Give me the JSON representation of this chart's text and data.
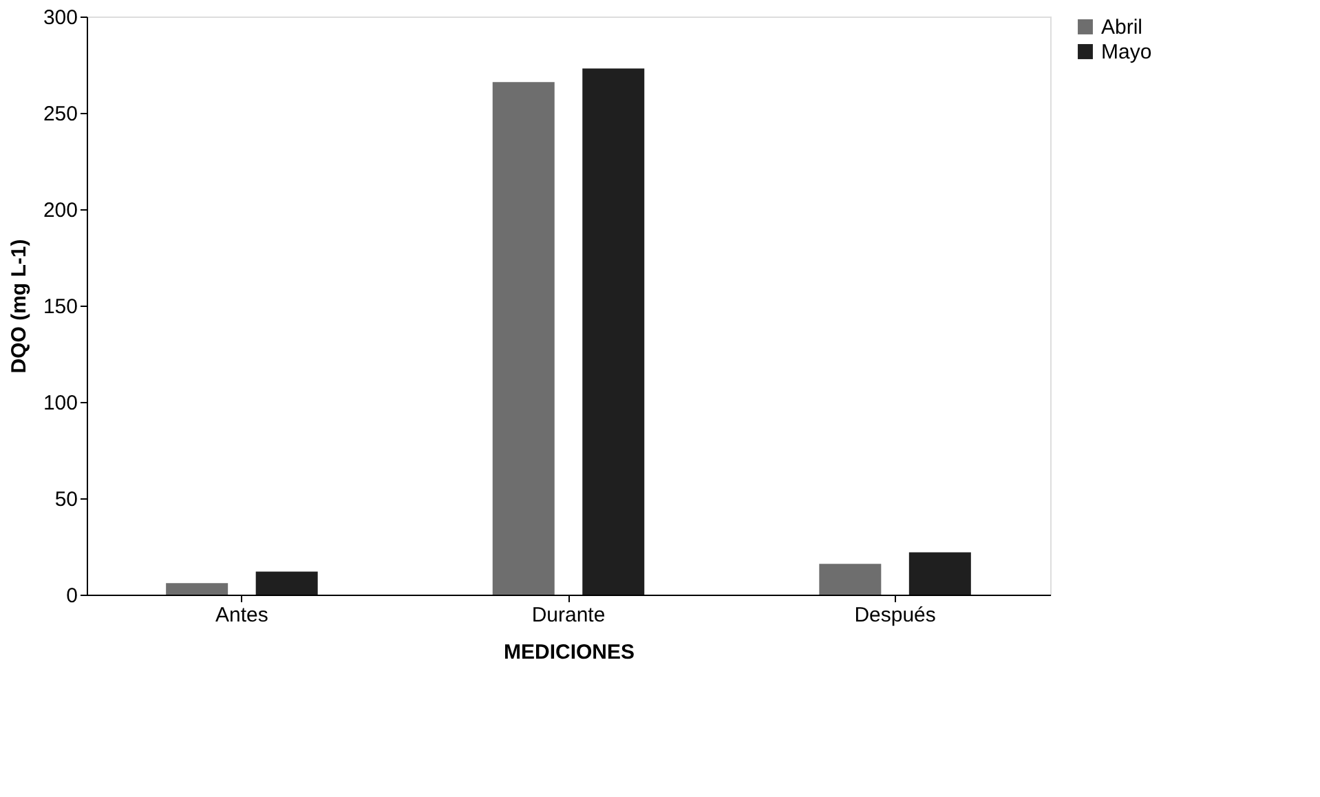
{
  "chart_data": {
    "type": "bar",
    "xlabel": "MEDICIONES",
    "ylabel": "DQO (mg L-1)",
    "categories": [
      "Antes",
      "Durante",
      "Después"
    ],
    "series": [
      {
        "name": "Abril",
        "color": "#6e6e6e",
        "values": [
          6,
          266,
          16
        ]
      },
      {
        "name": "Mayo",
        "color": "#1f1f1f",
        "values": [
          12,
          273,
          22
        ]
      }
    ],
    "ylim": [
      0,
      300
    ],
    "yticks": [
      0,
      50,
      100,
      150,
      200,
      250,
      300
    ],
    "grid": false,
    "legend": "right"
  }
}
